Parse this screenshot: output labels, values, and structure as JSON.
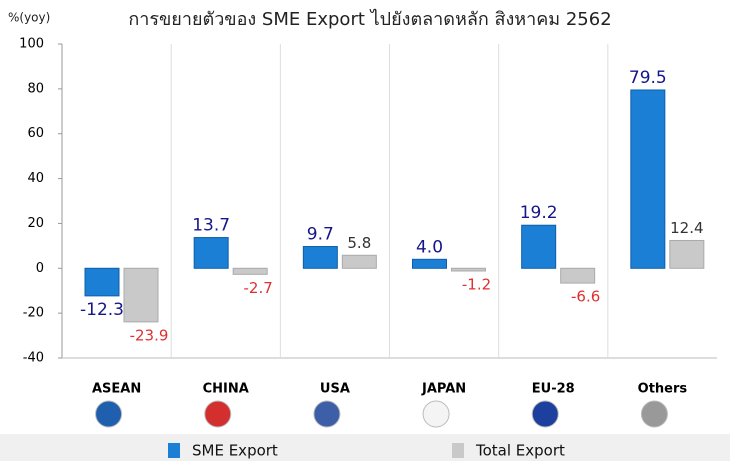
{
  "chart_data": {
    "type": "bar",
    "title": "การขยายตัวของ SME Export ไปยังตลาดหลัก สิงหาคม 2562",
    "y_label": "%(yoy)",
    "categories": [
      "ASEAN",
      "CHINA",
      "USA",
      "JAPAN",
      "EU-28",
      "Others"
    ],
    "series": [
      {
        "name": "SME Export",
        "color": "#1b7fd6",
        "values": [
          -12.3,
          13.7,
          9.7,
          4.0,
          19.2,
          79.5
        ],
        "value_labels": [
          "-12.3",
          "13.7",
          "9.7",
          "4.0",
          "19.2",
          "79.5"
        ]
      },
      {
        "name": "Total Export",
        "color": "#c9c9c9",
        "values": [
          -23.9,
          -2.7,
          5.8,
          -1.2,
          -6.6,
          12.4
        ],
        "value_labels": [
          "-23.9",
          "-2.7",
          "5.8",
          "-1.2",
          "-6.6",
          "12.4"
        ]
      }
    ],
    "ylim": [
      -40,
      100
    ],
    "yticks": [
      -40,
      -20,
      0,
      20,
      40,
      60,
      80,
      100
    ],
    "grid": false
  }
}
